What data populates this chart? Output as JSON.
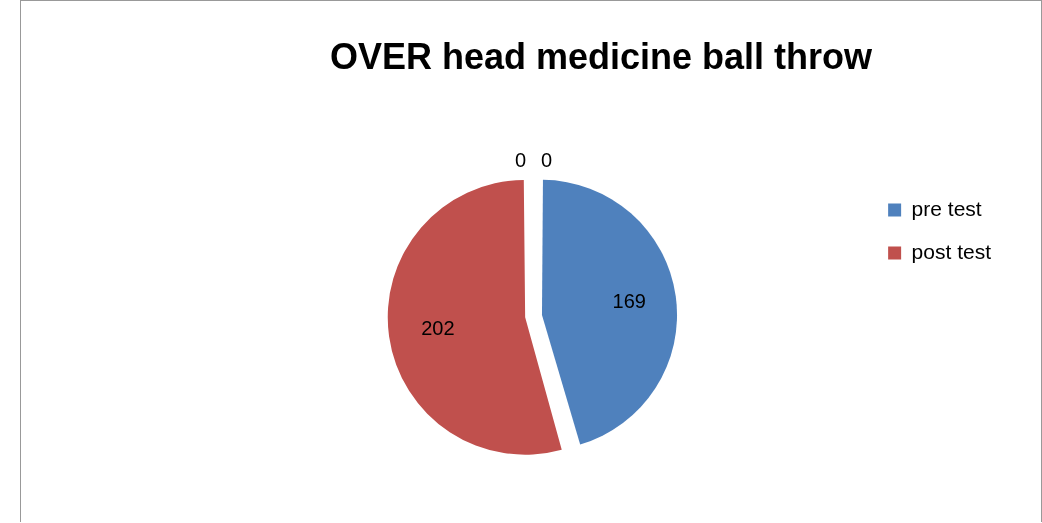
{
  "chart_data": {
    "type": "pie",
    "title": "OVER head medicine ball throw",
    "categories": [
      "pre test",
      "post test",
      null,
      null
    ],
    "values": [
      169,
      202,
      0,
      0
    ],
    "colors": [
      "#4f81bd",
      "#c0504d",
      "#9bbb59",
      "#8064a2"
    ],
    "value_labels": [
      "169",
      "202",
      "0",
      "0"
    ],
    "legend": "right"
  }
}
